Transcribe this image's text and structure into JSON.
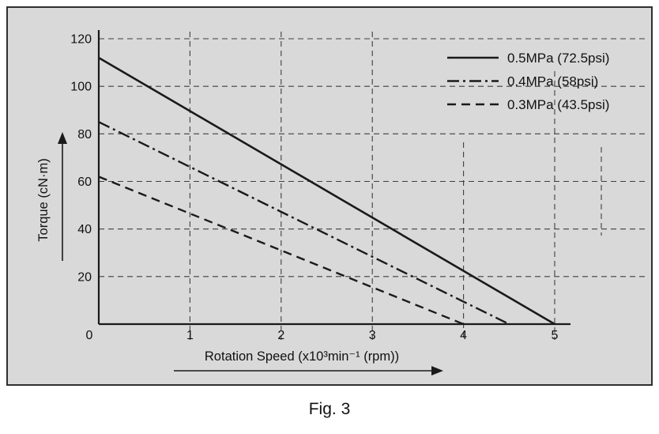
{
  "figure": {
    "caption": "Fig. 3"
  },
  "chart_data": {
    "type": "line",
    "title": "",
    "xlabel": "Rotation Speed (x10³min⁻¹ (rpm))",
    "ylabel": "Torque (cN·m)",
    "xlim": [
      0,
      5
    ],
    "ylim": [
      0,
      120
    ],
    "xticks": [
      0,
      1,
      2,
      3,
      4,
      5
    ],
    "yticks": [
      0,
      20,
      40,
      60,
      80,
      100,
      120
    ],
    "grid": "dashed",
    "legend_position": "top-right",
    "series": [
      {
        "name": "0.5MPa (72.5psi)",
        "style": "solid",
        "x": [
          0,
          5
        ],
        "y": [
          112,
          0
        ]
      },
      {
        "name": "0.4MPa (58psi)",
        "style": "dash-dot",
        "x": [
          0,
          4.5
        ],
        "y": [
          85,
          0
        ]
      },
      {
        "name": "0.3MPa (43.5psi)",
        "style": "dashed",
        "x": [
          0,
          4
        ],
        "y": [
          62,
          0
        ]
      }
    ],
    "colors": {
      "line": "#1a1a1a",
      "grid": "#3f3f3f",
      "background": "#d9d9d9",
      "border": "#2f2f2f",
      "text": "#111111"
    }
  }
}
